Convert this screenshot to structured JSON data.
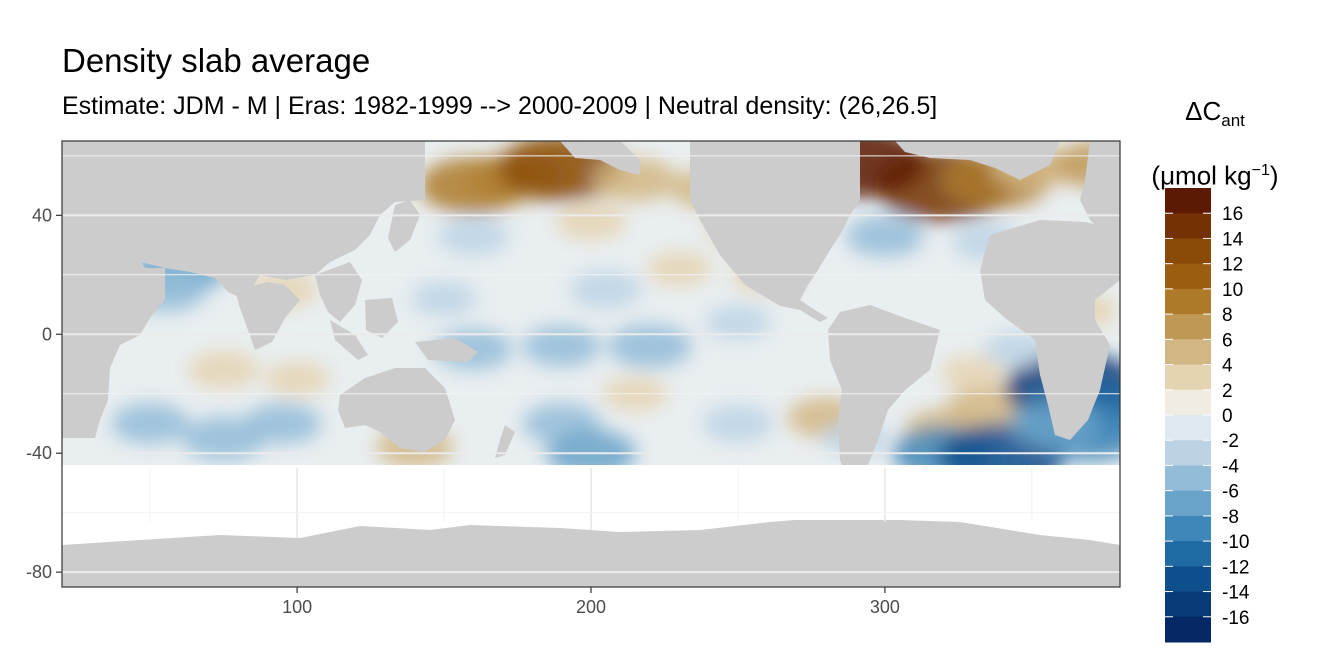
{
  "title": "Density slab average",
  "subtitle": "Estimate: JDM - M | Eras: 1982-1999 --> 2000-2009 | Neutral density: (26,26.5]",
  "legend": {
    "title_symbol": "ΔC",
    "title_sub": "ant",
    "unit_prefix": "(μmol kg",
    "unit_sup": "−1",
    "unit_suffix": ")",
    "labels": [
      "16",
      "14",
      "12",
      "10",
      "8",
      "6",
      "4",
      "2",
      "0",
      "-2",
      "-4",
      "-6",
      "-8",
      "-10",
      "-12",
      "-14",
      "-16"
    ],
    "colors": [
      "#5c1a04",
      "#743204",
      "#8a4a07",
      "#9b5d0f",
      "#ad7a2a",
      "#c09856",
      "#d2b683",
      "#e5d4b1",
      "#f1ece2",
      "#dde8ef",
      "#bcd3e5",
      "#93bcd8",
      "#6aa3c9",
      "#3f87b8",
      "#1f6aa3",
      "#0f4e8c",
      "#083a78",
      "#062864"
    ]
  },
  "chart_data": {
    "type": "heatmap",
    "title": "Density slab average",
    "subtitle": "Estimate: JDM - M | Eras: 1982-1999 --> 2000-2009 | Neutral density: (26,26.5]",
    "xlabel": "",
    "ylabel": "",
    "xlim": [
      20,
      380
    ],
    "ylim": [
      -85,
      65
    ],
    "x_ticks": [
      100,
      200,
      300
    ],
    "y_ticks": [
      40,
      0,
      -40,
      -80
    ],
    "color_range": [
      -17,
      17
    ],
    "grid": true,
    "legend_position": "right",
    "land_color": "#cccccc",
    "anomalies": [
      {
        "x": 175,
        "y": 53,
        "value": 7
      },
      {
        "x": 160,
        "y": 50,
        "value": 9
      },
      {
        "x": 190,
        "y": 56,
        "value": 12
      },
      {
        "x": 215,
        "y": 52,
        "value": 5
      },
      {
        "x": 240,
        "y": 49,
        "value": 4
      },
      {
        "x": 320,
        "y": 50,
        "value": 14
      },
      {
        "x": 338,
        "y": 52,
        "value": 9
      },
      {
        "x": 350,
        "y": 56,
        "value": 5
      },
      {
        "x": 373,
        "y": 57,
        "value": 6
      },
      {
        "x": 290,
        "y": 58,
        "value": 17
      },
      {
        "x": 200,
        "y": 38,
        "value": 3
      },
      {
        "x": 250,
        "y": 35,
        "value": 2
      },
      {
        "x": 300,
        "y": 33,
        "value": -4
      },
      {
        "x": 335,
        "y": 31,
        "value": -3
      },
      {
        "x": 160,
        "y": 33,
        "value": -3
      },
      {
        "x": 205,
        "y": 15,
        "value": -3
      },
      {
        "x": 260,
        "y": 20,
        "value": 3
      },
      {
        "x": 230,
        "y": 22,
        "value": 2
      },
      {
        "x": 150,
        "y": 12,
        "value": -2
      },
      {
        "x": 190,
        "y": -4,
        "value": -4
      },
      {
        "x": 220,
        "y": -4,
        "value": -5
      },
      {
        "x": 160,
        "y": -5,
        "value": -4
      },
      {
        "x": 250,
        "y": 4,
        "value": -2
      },
      {
        "x": 60,
        "y": 22,
        "value": -7
      },
      {
        "x": 55,
        "y": 15,
        "value": -5
      },
      {
        "x": 95,
        "y": 15,
        "value": 3
      },
      {
        "x": 75,
        "y": -12,
        "value": 3
      },
      {
        "x": 100,
        "y": -15,
        "value": 2
      },
      {
        "x": 50,
        "y": -30,
        "value": -4
      },
      {
        "x": 75,
        "y": -35,
        "value": -5
      },
      {
        "x": 95,
        "y": -30,
        "value": -4
      },
      {
        "x": 140,
        "y": -38,
        "value": 4
      },
      {
        "x": 190,
        "y": -30,
        "value": -4
      },
      {
        "x": 215,
        "y": -20,
        "value": 2
      },
      {
        "x": 200,
        "y": -40,
        "value": -6
      },
      {
        "x": 250,
        "y": -30,
        "value": -3
      },
      {
        "x": 280,
        "y": -28,
        "value": 4
      },
      {
        "x": 290,
        "y": -35,
        "value": -2
      },
      {
        "x": 330,
        "y": -13,
        "value": 2
      },
      {
        "x": 335,
        "y": -25,
        "value": 5
      },
      {
        "x": 320,
        "y": -32,
        "value": 4
      },
      {
        "x": 320,
        "y": -40,
        "value": -8
      },
      {
        "x": 340,
        "y": -41,
        "value": -12
      },
      {
        "x": 364,
        "y": -18,
        "value": -14
      },
      {
        "x": 368,
        "y": -25,
        "value": -11
      },
      {
        "x": 370,
        "y": -33,
        "value": -9
      },
      {
        "x": 358,
        "y": -30,
        "value": -6
      },
      {
        "x": 368,
        "y": 8,
        "value": 2
      },
      {
        "x": 350,
        "y": 15,
        "value": 1
      },
      {
        "x": 345,
        "y": -5,
        "value": -2
      }
    ]
  }
}
